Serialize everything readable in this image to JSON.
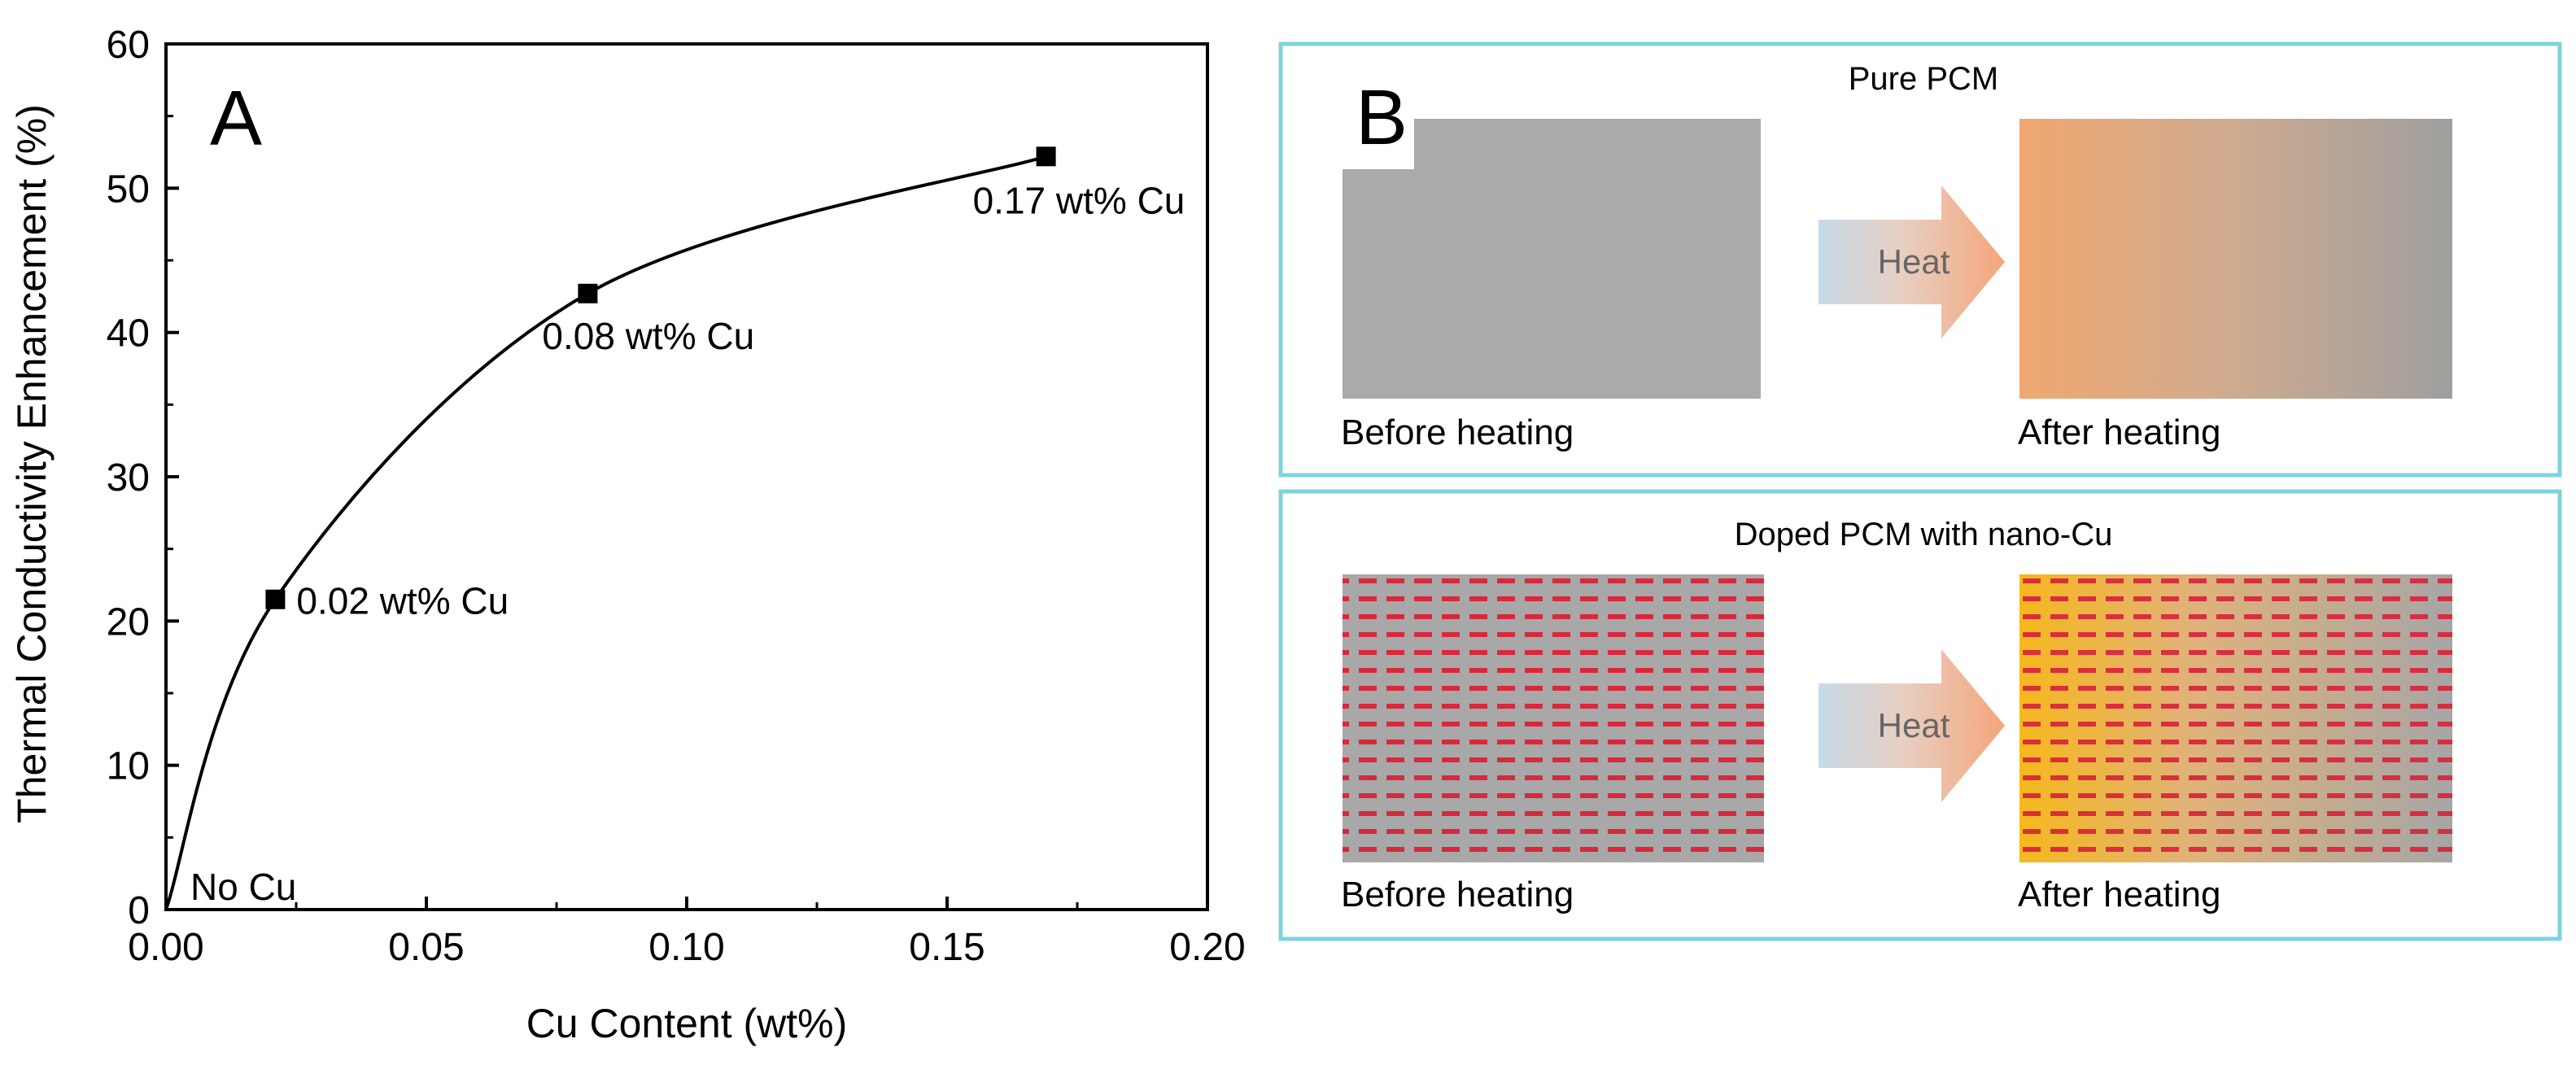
{
  "panel_a": {
    "letter": "A"
  },
  "chart_data": {
    "type": "line",
    "title": "",
    "xlabel": "Cu Content (wt%)",
    "ylabel": "Thermal Conductivity Enhancement (%)",
    "xlim": [
      0.0,
      0.2
    ],
    "ylim": [
      0,
      60
    ],
    "x_ticks": [
      "0.00",
      "0.05",
      "0.10",
      "0.15",
      "0.20"
    ],
    "y_ticks": [
      "0",
      "10",
      "20",
      "30",
      "40",
      "50",
      "60"
    ],
    "series": [
      {
        "name": "Thermal Conductivity Enhancement",
        "x": [
          0.0,
          0.021,
          0.081,
          0.169
        ],
        "y": [
          0.0,
          21.5,
          42.7,
          52.2
        ],
        "point_labels": [
          "No Cu",
          "0.02 wt% Cu",
          "0.08 wt% Cu",
          "0.17 wt% Cu"
        ]
      }
    ],
    "grid": false,
    "legend": "none"
  },
  "panel_b": {
    "letter": "B",
    "top": {
      "title": "Pure PCM",
      "before_caption": "Before heating",
      "after_caption": "After heating",
      "arrow_label": "Heat"
    },
    "bottom": {
      "title": "Doped PCM with nano-Cu",
      "before_caption": "Before heating",
      "after_caption": "After heating",
      "arrow_label": "Heat"
    },
    "colors": {
      "frame": "#7fd3dd",
      "pcm_gray": "#aaaaaa",
      "nano_red": "#d8283c",
      "heat_orange": "#f0a870",
      "heat_yellow": "#f6b81c",
      "arrow_blue": "#c6dbe9",
      "arrow_orange": "#f5a57a"
    }
  }
}
